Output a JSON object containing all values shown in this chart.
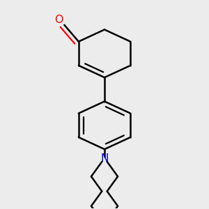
{
  "background_color": "#ececec",
  "line_color": "#000000",
  "oxygen_color": "#ff0000",
  "nitrogen_color": "#0000cd",
  "line_width": 1.8,
  "figsize": [
    3.0,
    3.0
  ],
  "dpi": 100,
  "xlim": [
    0.1,
    0.9
  ],
  "ylim": [
    0.0,
    1.0
  ]
}
